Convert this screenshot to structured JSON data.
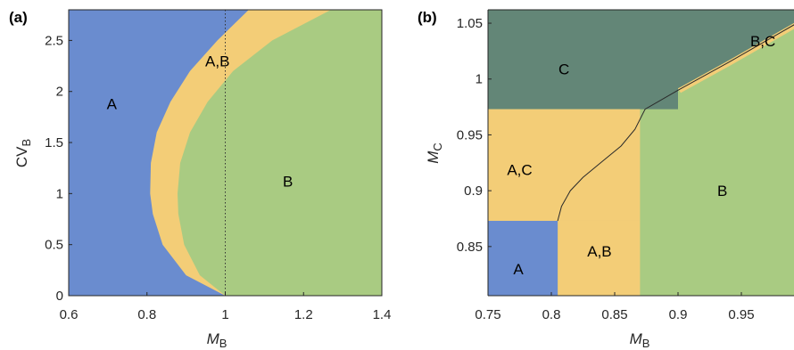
{
  "chart_data": [
    {
      "type": "area",
      "panel_label": "(a)",
      "xlabel": "M",
      "xlabel_sub": "B",
      "ylabel": "CV",
      "ylabel_sub": "B",
      "xlim": [
        0.6,
        1.4
      ],
      "ylim": [
        0,
        2.8
      ],
      "xticks": [
        0.6,
        0.8,
        1.0,
        1.2,
        1.4
      ],
      "xtick_labels": [
        "0.6",
        "0.8",
        "1",
        "1.2",
        "1.4"
      ],
      "yticks": [
        0,
        0.5,
        1.0,
        1.5,
        2.0,
        2.5
      ],
      "ytick_labels": [
        "0",
        "0.5",
        "1",
        "1.5",
        "2",
        "2.5"
      ],
      "regions": [
        {
          "name": "A",
          "color": "#6a8ccf",
          "label_at": [
            0.71,
            1.88
          ]
        },
        {
          "name": "A,B",
          "color": "#f3cd77",
          "label_at": [
            0.98,
            2.3
          ]
        },
        {
          "name": "B",
          "color": "#a9cb82",
          "label_at": [
            1.16,
            1.12
          ]
        }
      ],
      "boundary_A_AB": {
        "y": [
          0,
          0.2,
          0.5,
          0.8,
          1.0,
          1.3,
          1.6,
          1.9,
          2.2,
          2.5,
          2.8
        ],
        "x": [
          1.0,
          0.9,
          0.84,
          0.815,
          0.808,
          0.81,
          0.825,
          0.86,
          0.91,
          0.98,
          1.06
        ]
      },
      "boundary_AB_B": {
        "y": [
          0,
          0.2,
          0.5,
          0.8,
          1.0,
          1.3,
          1.6,
          1.9,
          2.2,
          2.5,
          2.8
        ],
        "x": [
          1.0,
          0.935,
          0.895,
          0.88,
          0.878,
          0.885,
          0.91,
          0.955,
          1.02,
          1.12,
          1.27
        ]
      },
      "vline": {
        "x": 1.0,
        "style": "dotted"
      }
    },
    {
      "type": "area",
      "panel_label": "(b)",
      "xlabel": "M",
      "xlabel_sub": "B",
      "ylabel": "M",
      "ylabel_sub": "C",
      "xlim": [
        0.75,
        1.0
      ],
      "ylim": [
        0.806,
        1.062
      ],
      "xticks": [
        0.75,
        0.8,
        0.85,
        0.9,
        0.95
      ],
      "xtick_labels": [
        "0.75",
        "0.8",
        "0.85",
        "0.9",
        "0.95"
      ],
      "yticks": [
        0.85,
        0.9,
        0.95,
        1.0,
        1.05
      ],
      "ytick_labels": [
        "0.85",
        "0.9",
        "0.95",
        "1",
        "1.05"
      ],
      "regions": [
        {
          "name": "A",
          "color": "#6a8ccf",
          "label_at": [
            0.774,
            0.83
          ]
        },
        {
          "name": "A,C",
          "color": "#f3cd77",
          "label_at": [
            0.775,
            0.919
          ]
        },
        {
          "name": "A,B",
          "color": "#f3cd77",
          "label_at": [
            0.838,
            0.846
          ]
        },
        {
          "name": "C",
          "color": "#638677",
          "label_at": [
            0.81,
            1.009
          ]
        },
        {
          "name": "B,C",
          "color": "#f3cd77",
          "label_at": [
            0.967,
            1.034
          ]
        },
        {
          "name": "B",
          "color": "#a9cb82",
          "label_at": [
            0.935,
            0.9
          ]
        }
      ],
      "thresholds": {
        "mb_A": 0.805,
        "mc_A": 0.873,
        "mb_AB": 0.87,
        "mc_AC": 0.973
      },
      "curve": {
        "x": [
          0.805,
          0.808,
          0.815,
          0.825,
          0.84,
          0.855,
          0.866,
          0.874,
          0.9,
          0.94,
          0.98,
          1.0
        ],
        "y": [
          0.873,
          0.886,
          0.9,
          0.912,
          0.926,
          0.94,
          0.955,
          0.973,
          0.99,
          1.015,
          1.041,
          1.054
        ]
      }
    }
  ]
}
